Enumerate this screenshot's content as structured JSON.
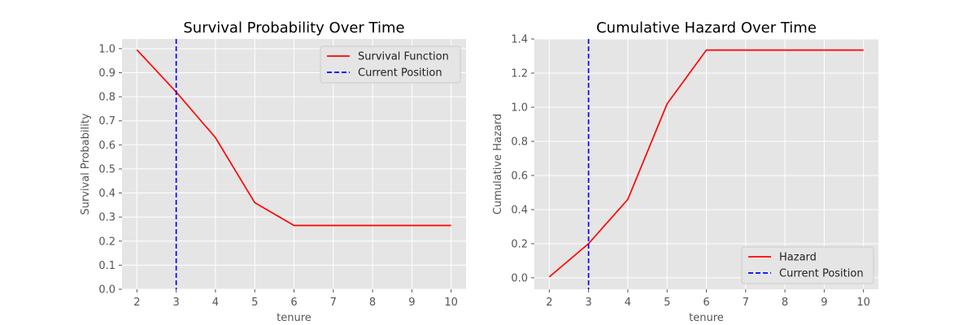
{
  "colors": {
    "series": "#ff0000",
    "marker": "#0000ff",
    "background": "#e5e5e5",
    "grid": "#ffffff"
  },
  "chart_data": [
    {
      "type": "line",
      "title": "Survival Probability Over Time",
      "xlabel": "tenure",
      "ylabel": "Survival Probability",
      "xlim": [
        1.62,
        10.38
      ],
      "ylim": [
        0.0,
        1.04
      ],
      "xticks": [
        2,
        3,
        4,
        5,
        6,
        7,
        8,
        9,
        10
      ],
      "yticks": [
        0.0,
        0.1,
        0.2,
        0.3,
        0.4,
        0.5,
        0.6,
        0.7,
        0.8,
        0.9,
        1.0
      ],
      "ytick_labels": [
        "0.0",
        "0.1",
        "0.2",
        "0.3",
        "0.4",
        "0.5",
        "0.6",
        "0.7",
        "0.8",
        "0.9",
        "1.0"
      ],
      "grid": true,
      "legend_position": "top-right",
      "series": [
        {
          "name": "Survival Function",
          "color": "#ff0000",
          "style": "solid",
          "x": [
            2,
            3,
            4,
            5,
            6,
            7,
            8,
            9,
            10
          ],
          "y": [
            0.995,
            0.82,
            0.63,
            0.36,
            0.265,
            0.265,
            0.265,
            0.265,
            0.265
          ]
        }
      ],
      "vlines": [
        {
          "name": "Current Position",
          "x": 3,
          "color": "#0000ff",
          "style": "dashed"
        }
      ]
    },
    {
      "type": "line",
      "title": "Cumulative Hazard Over Time",
      "xlabel": "tenure",
      "ylabel": "Cumulative Hazard",
      "xlim": [
        1.62,
        10.38
      ],
      "ylim": [
        -0.067,
        1.4
      ],
      "xticks": [
        2,
        3,
        4,
        5,
        6,
        7,
        8,
        9,
        10
      ],
      "yticks": [
        0.0,
        0.2,
        0.4,
        0.6,
        0.8,
        1.0,
        1.2,
        1.4
      ],
      "ytick_labels": [
        "0.0",
        "0.2",
        "0.4",
        "0.6",
        "0.8",
        "1.0",
        "1.2",
        "1.4"
      ],
      "grid": true,
      "legend_position": "bottom-right",
      "series": [
        {
          "name": "Hazard",
          "color": "#ff0000",
          "style": "solid",
          "x": [
            2,
            3,
            4,
            5,
            6,
            7,
            8,
            9,
            10
          ],
          "y": [
            0.005,
            0.2,
            0.46,
            1.02,
            1.335,
            1.335,
            1.335,
            1.335,
            1.335
          ]
        }
      ],
      "vlines": [
        {
          "name": "Current Position",
          "x": 3,
          "color": "#0000ff",
          "style": "dashed"
        }
      ]
    }
  ]
}
